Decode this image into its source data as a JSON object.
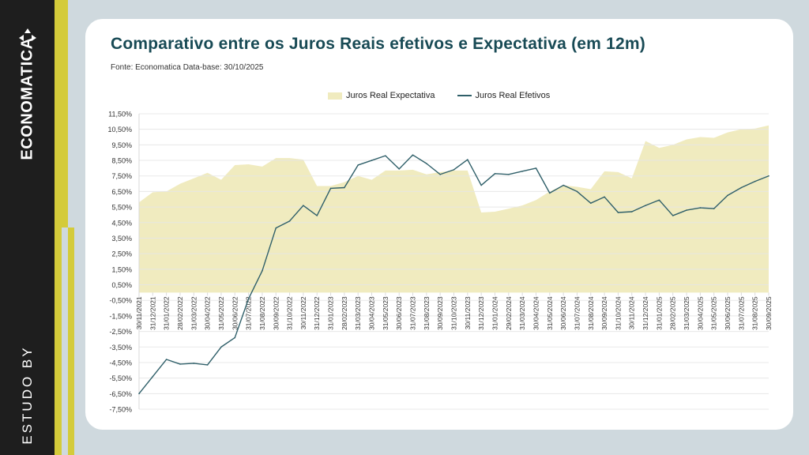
{
  "brand": {
    "name": "ECONOMATICA",
    "study_label": "ESTUDO BY"
  },
  "colors": {
    "area_fill": "#f0ebbf",
    "line": "#2f5f69",
    "title": "#184a55",
    "sidebar": "#1e1e1e",
    "accent": "#d4cb3a",
    "background": "#cfd9de",
    "gridline": "#e6e6e6"
  },
  "chart_data": {
    "type": "area",
    "title": "Comparativo entre os Juros Reais efetivos e Expectativa (em 12m)",
    "subtitle": "Fonte: Economatica Data-base: 30/10/2025",
    "xlabel": "",
    "ylabel": "",
    "ylim": [
      -7.5,
      11.5
    ],
    "yticks": [
      11.5,
      10.5,
      9.5,
      8.5,
      7.5,
      6.5,
      5.5,
      4.5,
      3.5,
      2.5,
      1.5,
      0.5,
      -0.5,
      -1.5,
      -2.5,
      -3.5,
      -4.5,
      -5.5,
      -6.5,
      -7.5
    ],
    "ytick_labels": [
      "11,50%",
      "10,50%",
      "9,50%",
      "8,50%",
      "7,50%",
      "6,50%",
      "5,50%",
      "4,50%",
      "3,50%",
      "2,50%",
      "1,50%",
      "0,50%",
      "-0,50%",
      "-1,50%",
      "-2,50%",
      "-3,50%",
      "-4,50%",
      "-5,50%",
      "-6,50%",
      "-7,50%"
    ],
    "grid": true,
    "legend_position": "top-center",
    "categories": [
      "30/11/2021",
      "31/12/2021",
      "31/01/2022",
      "28/02/2022",
      "31/03/2022",
      "30/04/2022",
      "31/05/2022",
      "30/06/2022",
      "31/07/2022",
      "31/08/2022",
      "30/09/2022",
      "31/10/2022",
      "30/11/2022",
      "31/12/2022",
      "31/01/2023",
      "28/02/2023",
      "31/03/2023",
      "30/04/2023",
      "31/05/2023",
      "30/06/2023",
      "31/07/2023",
      "31/08/2023",
      "30/09/2023",
      "31/10/2023",
      "30/11/2023",
      "31/12/2023",
      "31/01/2024",
      "29/02/2024",
      "31/03/2024",
      "30/04/2024",
      "31/05/2024",
      "30/06/2024",
      "31/07/2024",
      "31/08/2024",
      "30/09/2024",
      "31/10/2024",
      "30/11/2024",
      "31/12/2024",
      "31/01/2025",
      "28/02/2025",
      "31/03/2025",
      "30/04/2025",
      "31/05/2025",
      "30/06/2025",
      "31/07/2025",
      "31/08/2025",
      "30/09/2025"
    ],
    "series": [
      {
        "name": "Juros Real Expectativa",
        "kind": "area",
        "values": [
          5.8,
          6.45,
          6.5,
          7.0,
          7.35,
          7.7,
          7.25,
          8.2,
          8.25,
          8.1,
          8.65,
          8.65,
          8.55,
          6.85,
          6.85,
          7.1,
          7.5,
          7.25,
          7.85,
          7.85,
          7.9,
          7.6,
          7.75,
          7.85,
          7.85,
          5.15,
          5.2,
          5.4,
          5.6,
          5.95,
          6.5,
          6.9,
          6.8,
          6.65,
          7.8,
          7.75,
          7.35,
          9.75,
          9.3,
          9.5,
          9.85,
          10.0,
          9.95,
          10.3,
          10.5,
          10.55,
          10.75
        ]
      },
      {
        "name": "Juros Real Efetivos",
        "kind": "line",
        "values": [
          -6.5,
          -5.4,
          -4.3,
          -4.6,
          -4.55,
          -4.65,
          -3.5,
          -2.9,
          -0.4,
          1.4,
          4.15,
          4.6,
          5.6,
          4.95,
          6.7,
          6.75,
          8.2,
          8.5,
          8.8,
          7.95,
          8.85,
          8.3,
          7.6,
          7.9,
          8.55,
          6.9,
          7.65,
          7.6,
          7.8,
          8.0,
          6.4,
          6.9,
          6.5,
          5.75,
          6.15,
          5.15,
          5.2,
          5.6,
          5.95,
          4.95,
          5.3,
          5.45,
          5.4,
          6.25,
          6.75,
          7.15,
          7.5
        ]
      }
    ]
  }
}
